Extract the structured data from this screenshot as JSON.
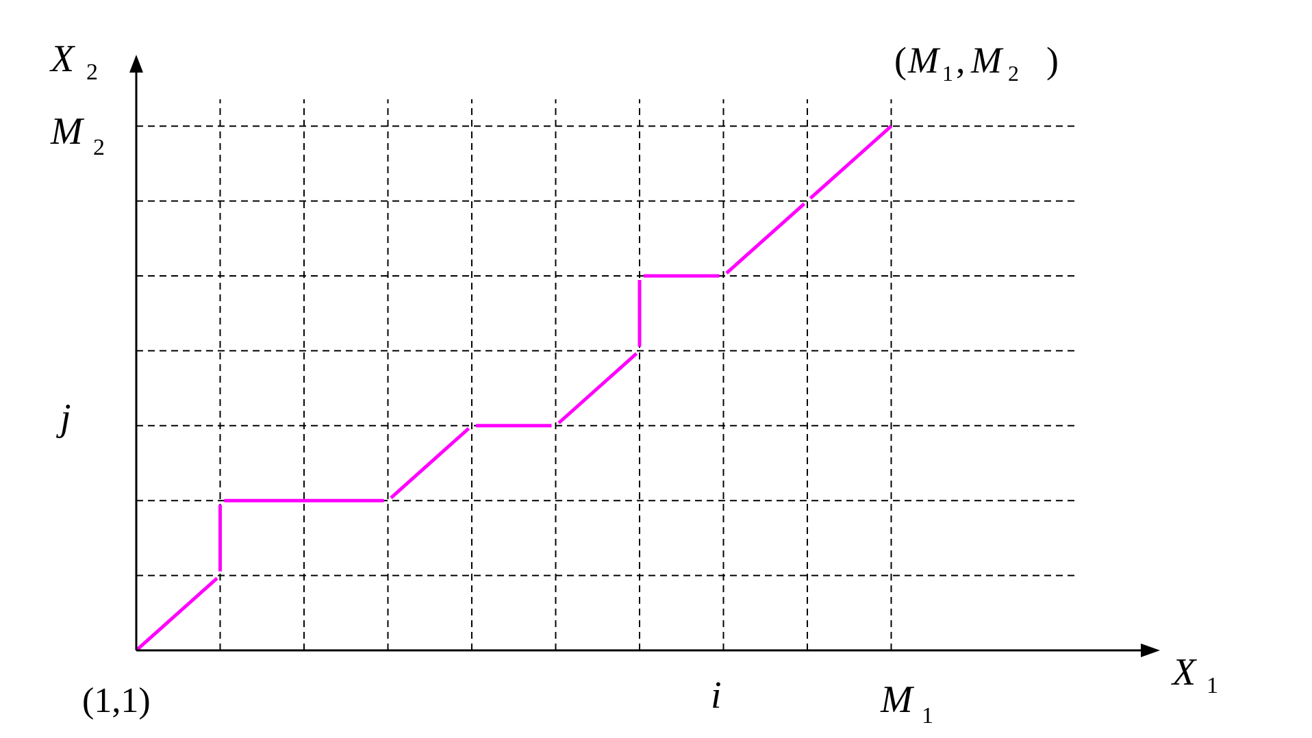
{
  "axes": {
    "x_label": "X",
    "x_subscript": "1",
    "y_label": "X",
    "y_subscript": "2"
  },
  "labels": {
    "origin": "(1,1)",
    "i": "i",
    "j": "j",
    "m1": "M",
    "m1_sub": "1",
    "m2": "M",
    "m2_sub": "2",
    "corner_open": "(",
    "corner_m1": "M",
    "corner_m1_sub": "1",
    "corner_comma": ",",
    "corner_m2": "M",
    "corner_m2_sub": "2",
    "corner_close": ")"
  },
  "colors": {
    "path": "#ff00ff",
    "grid": "#000000",
    "axis": "#000000"
  },
  "path_segments": [
    [
      [
        0,
        0
      ],
      [
        1,
        1
      ]
    ],
    [
      [
        1,
        1
      ],
      [
        1,
        2
      ]
    ],
    [
      [
        1,
        2
      ],
      [
        3,
        2
      ]
    ],
    [
      [
        3,
        2
      ],
      [
        4,
        3
      ]
    ],
    [
      [
        4,
        3
      ],
      [
        5,
        3
      ]
    ],
    [
      [
        5,
        3
      ],
      [
        6,
        4
      ]
    ],
    [
      [
        6,
        4
      ],
      [
        6,
        5
      ]
    ],
    [
      [
        6,
        5
      ],
      [
        7,
        5
      ]
    ],
    [
      [
        7,
        5
      ],
      [
        8,
        6
      ]
    ],
    [
      [
        8,
        6
      ],
      [
        9,
        7
      ]
    ]
  ]
}
